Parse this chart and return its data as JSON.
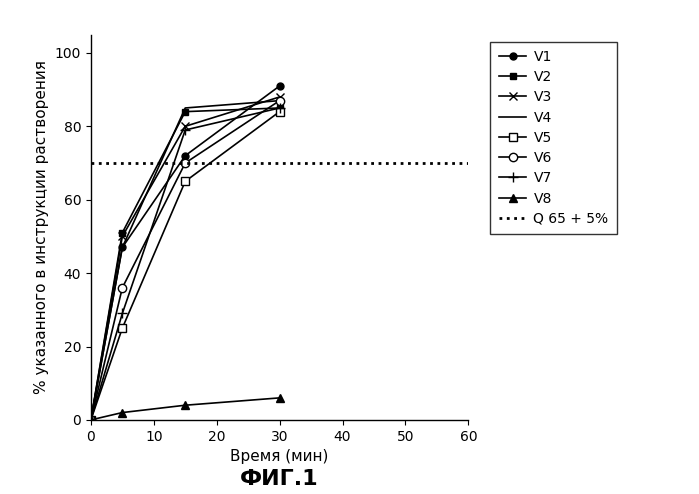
{
  "title": "ФИГ.1",
  "xlabel": "Время (мин)",
  "ylabel": "% указанного в инструкции растворения",
  "xlim": [
    0,
    60
  ],
  "ylim": [
    0,
    105
  ],
  "xticks": [
    0,
    10,
    20,
    30,
    40,
    50,
    60
  ],
  "yticks": [
    0,
    20,
    40,
    60,
    80,
    100
  ],
  "x_data": [
    0,
    5,
    15,
    30
  ],
  "series": [
    {
      "label": "V1",
      "values": [
        0,
        47,
        72,
        91
      ],
      "marker": "o",
      "markersize": 5,
      "markerfacecolor": "black",
      "markeredgecolor": "black"
    },
    {
      "label": "V2",
      "values": [
        0,
        51,
        84,
        85
      ],
      "marker": "s",
      "markersize": 5,
      "markerfacecolor": "black",
      "markeredgecolor": "black"
    },
    {
      "label": "V3",
      "values": [
        0,
        50,
        80,
        88
      ],
      "marker": "x",
      "markersize": 6,
      "markerfacecolor": "black",
      "markeredgecolor": "black"
    },
    {
      "label": "V4",
      "values": [
        0,
        47,
        85,
        87
      ],
      "marker": "None",
      "markersize": 5,
      "markerfacecolor": "black",
      "markeredgecolor": "black"
    },
    {
      "label": "V5",
      "values": [
        0,
        25,
        65,
        84
      ],
      "marker": "s",
      "markersize": 6,
      "markerfacecolor": "white",
      "markeredgecolor": "black"
    },
    {
      "label": "V6",
      "values": [
        0,
        36,
        70,
        87
      ],
      "marker": "o",
      "markersize": 6,
      "markerfacecolor": "white",
      "markeredgecolor": "black"
    },
    {
      "label": "V7",
      "values": [
        0,
        29,
        79,
        85
      ],
      "marker": "+",
      "markersize": 7,
      "markerfacecolor": "black",
      "markeredgecolor": "black"
    },
    {
      "label": "V8",
      "values": [
        0,
        2,
        4,
        6
      ],
      "marker": "^",
      "markersize": 6,
      "markerfacecolor": "black",
      "markeredgecolor": "black"
    }
  ],
  "hline_y": 70,
  "hline_label": "Q 65 + 5%",
  "background_color": "#ffffff",
  "fontsize_title": 16,
  "fontsize_labels": 11,
  "fontsize_ticks": 10,
  "fontsize_legend": 10
}
